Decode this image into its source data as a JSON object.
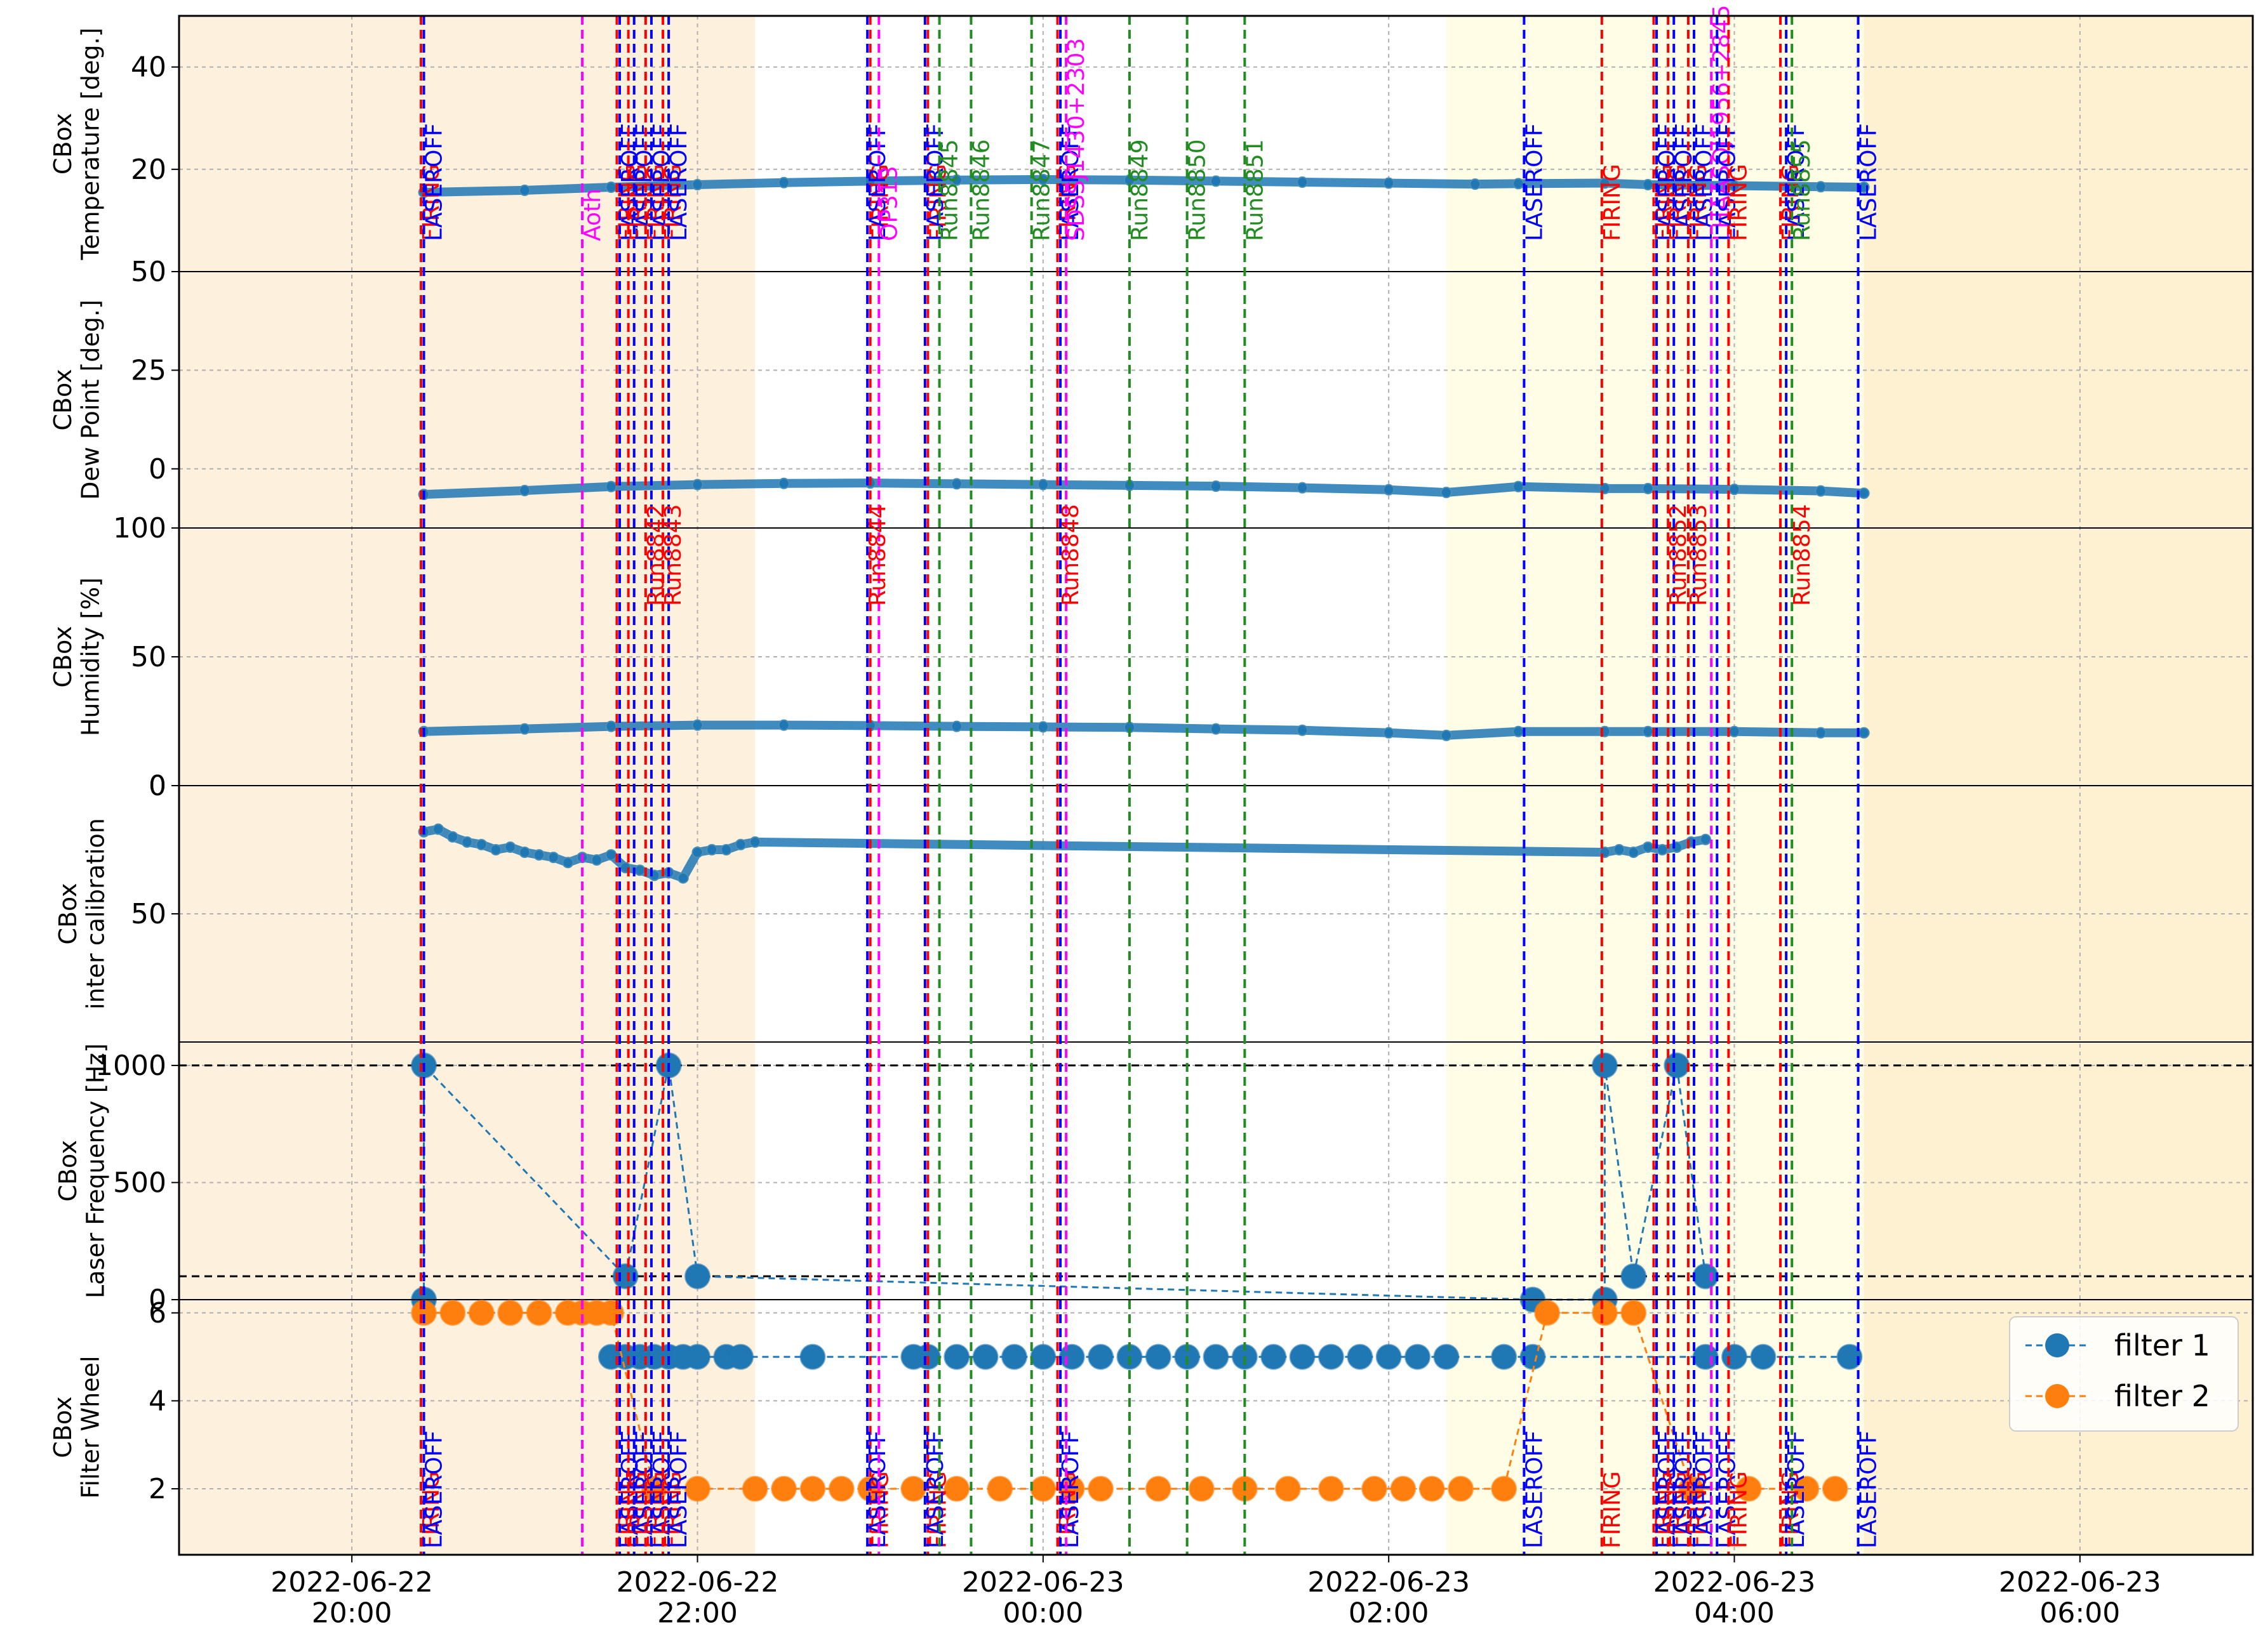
{
  "chart_data": {
    "type": "line",
    "x_axis": {
      "range": [
        "2022-06-22 19:00",
        "2022-06-23 07:00"
      ],
      "tick_labels": [
        [
          "2022-06-22",
          "20:00"
        ],
        [
          "2022-06-22",
          "22:00"
        ],
        [
          "2022-06-23",
          "00:00"
        ],
        [
          "2022-06-23",
          "02:00"
        ],
        [
          "2022-06-23",
          "04:00"
        ],
        [
          "2022-06-23",
          "06:00"
        ]
      ],
      "grid": true
    },
    "background_bands": [
      {
        "from": "2022-06-22 19:00",
        "to": "2022-06-22 22:20",
        "color": "#fdf0dc"
      },
      {
        "from": "2022-06-23 02:20",
        "to": "2022-06-23 04:45",
        "color": "#fffde5"
      },
      {
        "from": "2022-06-23 04:45",
        "to": "2022-06-23 07:00",
        "color": "#fdf1d2"
      }
    ],
    "panels": [
      {
        "id": "temperature",
        "ylabel": [
          "CBox",
          "Temperature [deg.]"
        ],
        "ylim": [
          0,
          50
        ],
        "yticks": [
          20,
          40
        ],
        "series": [
          {
            "color": "#1f77b4",
            "marker": "dot",
            "x": [
              "20:25",
              "21:00",
              "21:30",
              "22:00",
              "22:30",
              "23:00",
              "23:30",
              "00:00",
              "00:30",
              "01:00",
              "01:30",
              "02:00",
              "02:30",
              "02:45",
              "03:15",
              "03:30",
              "04:00",
              "04:30",
              "04:45"
            ],
            "y": [
              15.5,
              15.9,
              16.5,
              17.0,
              17.4,
              17.7,
              17.9,
              18.0,
              17.9,
              17.7,
              17.5,
              17.3,
              17.1,
              17.2,
              17.3,
              17.0,
              16.8,
              16.6,
              16.5
            ]
          }
        ]
      },
      {
        "id": "dewpoint",
        "ylabel": [
          "CBox",
          "Dew Point [deg.]"
        ],
        "ylim": [
          -15,
          50
        ],
        "yticks": [
          0,
          25,
          50
        ],
        "series": [
          {
            "color": "#1f77b4",
            "marker": "dot",
            "x": [
              "20:25",
              "21:00",
              "21:30",
              "22:00",
              "22:30",
              "23:00",
              "23:30",
              "00:00",
              "00:30",
              "01:00",
              "01:30",
              "02:00",
              "02:20",
              "02:45",
              "03:15",
              "03:30",
              "04:00",
              "04:30",
              "04:45"
            ],
            "y": [
              -6.5,
              -5.5,
              -4.5,
              -4.0,
              -3.7,
              -3.6,
              -3.8,
              -4.0,
              -4.2,
              -4.4,
              -4.8,
              -5.3,
              -6.0,
              -4.5,
              -5.0,
              -5.0,
              -5.2,
              -5.6,
              -6.2
            ]
          }
        ]
      },
      {
        "id": "humidity",
        "ylabel": [
          "CBox",
          "Humidity [%]"
        ],
        "ylim": [
          0,
          100
        ],
        "yticks": [
          0,
          50,
          100
        ],
        "series": [
          {
            "color": "#1f77b4",
            "marker": "dot",
            "x": [
              "20:25",
              "21:00",
              "21:30",
              "22:00",
              "22:30",
              "23:00",
              "23:30",
              "00:00",
              "00:30",
              "01:00",
              "01:30",
              "02:00",
              "02:20",
              "02:45",
              "03:15",
              "03:30",
              "04:00",
              "04:30",
              "04:45"
            ],
            "y": [
              21,
              22,
              23,
              23.5,
              23.5,
              23.3,
              23,
              22.8,
              22.6,
              22,
              21.5,
              20.5,
              19.5,
              21,
              21,
              21,
              21,
              20.5,
              20.5
            ]
          }
        ]
      },
      {
        "id": "intercal",
        "ylabel": [
          "CBox",
          "inter calibration"
        ],
        "ylim": [
          0,
          100
        ],
        "yticks": [
          0,
          50
        ],
        "inverted": true,
        "series": [
          {
            "color": "#1f77b4",
            "marker": "dot",
            "x": [
              "20:25",
              "20:30",
              "20:35",
              "20:40",
              "20:45",
              "20:50",
              "20:55",
              "21:00",
              "21:05",
              "21:10",
              "21:15",
              "21:20",
              "21:25",
              "21:30",
              "21:35",
              "21:40",
              "21:45",
              "21:50",
              "21:55",
              "22:00",
              "22:05",
              "22:10",
              "22:15",
              "22:20",
              "03:15",
              "03:20",
              "03:25",
              "03:30",
              "03:35",
              "03:40",
              "03:45",
              "03:50"
            ],
            "y": [
              18,
              17,
              20,
              22,
              23,
              25,
              24,
              26,
              27,
              28,
              30,
              28,
              29,
              27,
              32,
              33,
              35,
              34,
              36,
              26,
              25,
              25,
              23,
              22,
              26,
              25,
              26,
              24,
              25,
              24,
              22,
              21
            ]
          }
        ]
      },
      {
        "id": "laserfreq",
        "ylabel": [
          "CBox",
          "Laser Frequency [Hz]"
        ],
        "ylim": [
          0,
          1100
        ],
        "yticks": [
          0,
          500,
          1000
        ],
        "hlines": [
          1000,
          100
        ],
        "series": [
          {
            "color": "#1f77b4",
            "marker": "big",
            "x": [
              "20:25",
              "20:25",
              "21:35",
              "21:50",
              "22:00",
              "02:50",
              "03:15",
              "03:15",
              "03:25",
              "03:40",
              "03:50"
            ],
            "y": [
              0,
              1000,
              100,
              1000,
              100,
              0,
              0,
              1000,
              100,
              1000,
              100
            ]
          }
        ]
      },
      {
        "id": "filterwheel",
        "ylabel": [
          "CBox",
          "Filter Wheel"
        ],
        "ylim": [
          0.5,
          6.3
        ],
        "yticks": [
          2,
          4,
          6
        ],
        "legend": {
          "position": "right",
          "entries": [
            "filter 1",
            "filter 2"
          ]
        },
        "series": [
          {
            "name": "filter 1",
            "color": "#1f77b4",
            "marker": "big",
            "x": [
              "21:30",
              "21:35",
              "21:40",
              "21:45",
              "21:50",
              "21:55",
              "22:00",
              "22:10",
              "22:15",
              "22:40",
              "23:15",
              "23:20",
              "23:30",
              "23:40",
              "23:50",
              "00:00",
              "00:10",
              "00:20",
              "00:30",
              "00:40",
              "00:50",
              "01:00",
              "01:10",
              "01:20",
              "01:30",
              "01:40",
              "01:50",
              "02:00",
              "02:10",
              "02:20",
              "02:40",
              "02:50",
              "03:50",
              "04:00",
              "04:10",
              "04:40"
            ],
            "y": [
              5,
              5,
              5,
              5,
              5,
              5,
              5,
              5,
              5,
              5,
              5,
              5,
              5,
              5,
              5,
              5,
              5,
              5,
              5,
              5,
              5,
              5,
              5,
              5,
              5,
              5,
              5,
              5,
              5,
              5,
              5,
              5,
              5,
              5,
              5,
              5
            ]
          },
          {
            "name": "filter 2",
            "color": "#ff7f0e",
            "marker": "big",
            "x": [
              "20:25",
              "20:35",
              "20:45",
              "20:55",
              "21:05",
              "21:15",
              "21:20",
              "21:25",
              "21:30",
              "21:45",
              "22:00",
              "22:20",
              "22:30",
              "22:40",
              "22:50",
              "23:00",
              "23:15",
              "23:30",
              "23:45",
              "00:00",
              "00:10",
              "00:20",
              "00:40",
              "00:55",
              "01:10",
              "01:25",
              "01:40",
              "01:55",
              "02:05",
              "02:15",
              "02:25",
              "02:40",
              "02:55",
              "03:15",
              "03:25",
              "03:45",
              "04:05",
              "04:25",
              "04:35"
            ],
            "y": [
              6,
              6,
              6,
              6,
              6,
              6,
              6,
              6,
              6,
              2,
              2,
              2,
              2,
              2,
              2,
              2,
              2,
              2,
              2,
              2,
              2,
              2,
              2,
              2,
              2,
              2,
              2,
              2,
              2,
              2,
              2,
              2,
              6,
              6,
              6,
              2,
              2,
              2,
              2
            ]
          }
        ]
      }
    ],
    "event_lines": [
      {
        "time": "20:24",
        "color": "#ff0000",
        "label": "FIRING"
      },
      {
        "time": "20:25",
        "color": "#0000ff",
        "label": "LASEROFF"
      },
      {
        "time": "21:20",
        "color": "#ff00ff",
        "label": "Aoth"
      },
      {
        "time": "21:32",
        "color": "#ff0000",
        "label": "FIRING"
      },
      {
        "time": "21:33",
        "color": "#0000ff",
        "label": "LASEROFF"
      },
      {
        "time": "21:36",
        "color": "#ff0000",
        "label": "FIRING"
      },
      {
        "time": "21:38",
        "color": "#0000ff",
        "label": "LASEROFF"
      },
      {
        "time": "21:42",
        "color": "#ff0000",
        "label": "FIRING"
      },
      {
        "time": "21:44",
        "color": "#0000ff",
        "label": "LASEROFF"
      },
      {
        "time": "21:48",
        "color": "#ff0000",
        "label": "FIRING"
      },
      {
        "time": "21:50",
        "color": "#0000ff",
        "label": "LASEROFF"
      },
      {
        "time": "23:00",
        "color": "#ff0000",
        "label": "FIRING"
      },
      {
        "time": "22:59",
        "color": "#0000ff",
        "label": "LASEROFF"
      },
      {
        "time": "23:03",
        "color": "#ff00ff",
        "label": "OP313"
      },
      {
        "time": "23:20",
        "color": "#ff0000",
        "label": "FIRING"
      },
      {
        "time": "23:19",
        "color": "#0000ff",
        "label": "LASEROFF"
      },
      {
        "time": "23:24",
        "color": "#228b22",
        "label": "Run8845"
      },
      {
        "time": "23:35",
        "color": "#228b22",
        "label": "Run8846"
      },
      {
        "time": "23:56",
        "color": "#228b22",
        "label": "Run8847"
      },
      {
        "time": "00:05",
        "color": "#ff0000",
        "label": "FIRING"
      },
      {
        "time": "00:06",
        "color": "#0000ff",
        "label": "LASEROFF"
      },
      {
        "time": "00:08",
        "color": "#ff00ff",
        "label": "SDSSJ1430+2303"
      },
      {
        "time": "00:30",
        "color": "#228b22",
        "label": "Run8849"
      },
      {
        "time": "00:50",
        "color": "#228b22",
        "label": "Run8850"
      },
      {
        "time": "01:10",
        "color": "#228b22",
        "label": "Run8851"
      },
      {
        "time": "02:47",
        "color": "#0000ff",
        "label": "LASEROFF"
      },
      {
        "time": "03:14",
        "color": "#ff0000",
        "label": "FIRING"
      },
      {
        "time": "03:32",
        "color": "#ff0000",
        "label": "FIRING"
      },
      {
        "time": "03:33",
        "color": "#0000ff",
        "label": "LASEROFF"
      },
      {
        "time": "03:37",
        "color": "#ff0000",
        "label": "FIRING"
      },
      {
        "time": "03:39",
        "color": "#0000ff",
        "label": "LASEROFF"
      },
      {
        "time": "03:44",
        "color": "#ff0000",
        "label": "FIRING"
      },
      {
        "time": "03:46",
        "color": "#0000ff",
        "label": "LASEROFF"
      },
      {
        "time": "03:52",
        "color": "#ff00ff",
        "label": "LHAASOJ1956+2845"
      },
      {
        "time": "03:54",
        "color": "#0000ff",
        "label": "LASEROFF"
      },
      {
        "time": "03:58",
        "color": "#ff0000",
        "label": "FIRING"
      },
      {
        "time": "04:16",
        "color": "#ff0000",
        "label": "FIRING"
      },
      {
        "time": "04:18",
        "color": "#0000ff",
        "label": "LASEROFF"
      },
      {
        "time": "04:20",
        "color": "#228b22",
        "label": "Run8855"
      },
      {
        "time": "04:43",
        "color": "#0000ff",
        "label": "LASEROFF"
      }
    ],
    "run_labels": [
      {
        "time": "21:42",
        "label": "Run8842"
      },
      {
        "time": "21:48",
        "label": "Run8843"
      },
      {
        "time": "22:59",
        "label": "Run8844"
      },
      {
        "time": "00:06",
        "label": "Run8848"
      },
      {
        "time": "03:37",
        "label": "Run8852"
      },
      {
        "time": "03:44",
        "label": "Run8853"
      },
      {
        "time": "04:20",
        "label": "Run8854"
      }
    ]
  }
}
